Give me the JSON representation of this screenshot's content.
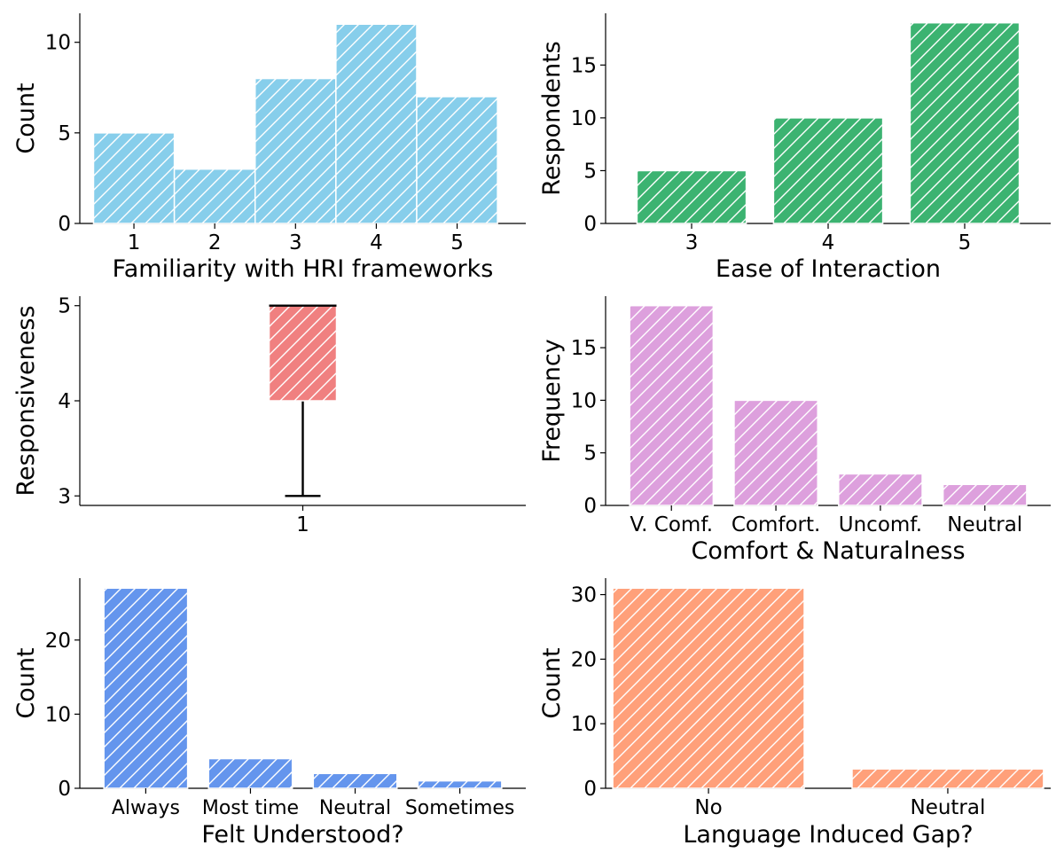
{
  "chart_data": [
    {
      "type": "histogram",
      "categories": [
        "1",
        "2",
        "3",
        "4",
        "5"
      ],
      "values": [
        5,
        3,
        8,
        11,
        7
      ],
      "xlabel": "Familiarity with HRI frameworks",
      "ylabel": "Count",
      "yticks": [
        "0",
        "5",
        "10"
      ],
      "ylim": [
        0,
        11.6
      ],
      "color": "#87CEEB",
      "hatch": "//",
      "bar_width": 1.0
    },
    {
      "type": "bar",
      "categories": [
        "3",
        "4",
        "5"
      ],
      "values": [
        5,
        10,
        19
      ],
      "xlabel": "Ease of Interaction",
      "ylabel": "Respondents",
      "yticks": [
        "0",
        "5",
        "10",
        "15"
      ],
      "ylim": [
        0,
        19.9
      ],
      "color": "#3CB371",
      "hatch": "//",
      "bar_width": 0.8
    },
    {
      "type": "box",
      "categories": [
        "1"
      ],
      "box": {
        "whisker_low": 3,
        "q1": 4,
        "median": 5,
        "q3": 5,
        "whisker_high": 5
      },
      "xlabel": "",
      "ylabel": "Responsiveness",
      "yticks": [
        "3",
        "4",
        "5"
      ],
      "ylim": [
        2.9,
        5.1
      ],
      "color": "#F08080",
      "hatch": "//"
    },
    {
      "type": "bar",
      "categories": [
        "V. Comf.",
        "Comfort.",
        "Uncomf.",
        "Neutral"
      ],
      "values": [
        19,
        10,
        3,
        2
      ],
      "xlabel": "Comfort & Naturalness",
      "ylabel": "Frequency",
      "yticks": [
        "0",
        "5",
        "10",
        "15"
      ],
      "ylim": [
        0,
        19.9
      ],
      "color": "#DDA0DD",
      "hatch": "//",
      "bar_width": 0.8
    },
    {
      "type": "bar",
      "categories": [
        "Always",
        "Most time",
        "Neutral",
        "Sometimes"
      ],
      "values": [
        27,
        4,
        2,
        1
      ],
      "xlabel": "Felt Understood?",
      "ylabel": "Count",
      "yticks": [
        "0",
        "10",
        "20"
      ],
      "ylim": [
        0,
        28.35
      ],
      "color": "#6495ED",
      "hatch": "//",
      "bar_width": 0.8
    },
    {
      "type": "bar",
      "categories": [
        "No",
        "Neutral"
      ],
      "values": [
        31,
        3
      ],
      "xlabel": "Language Induced Gap?",
      "ylabel": "Count",
      "yticks": [
        "0",
        "10",
        "20",
        "30"
      ],
      "ylim": [
        0,
        32.55
      ],
      "color": "#FFA07A",
      "hatch": "//",
      "bar_width": 0.8
    }
  ]
}
